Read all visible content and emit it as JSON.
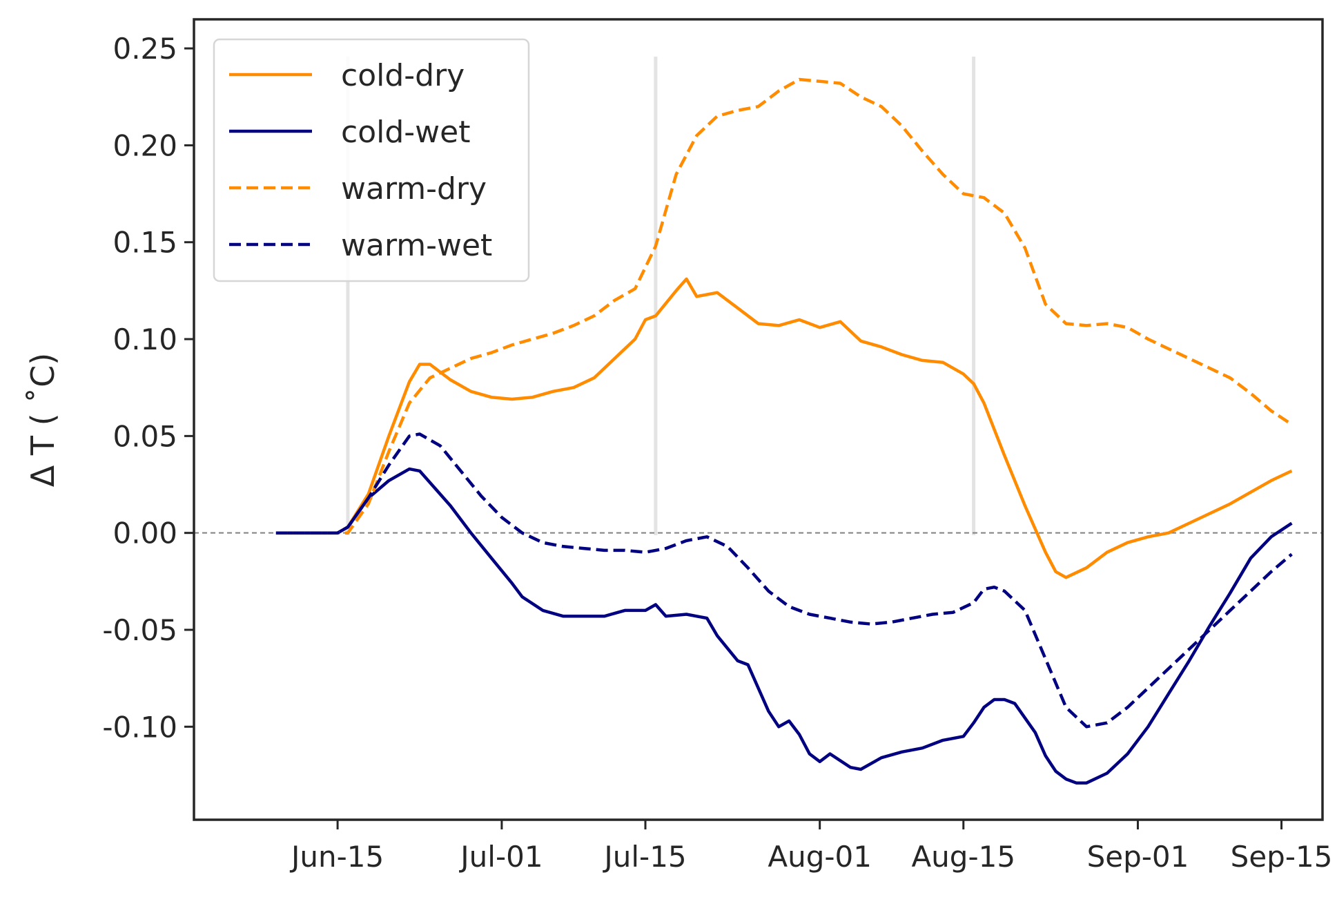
{
  "chart_data": {
    "type": "line",
    "title": "",
    "xlabel": "",
    "ylabel": "Δ T ( ˚C)",
    "ylim": [
      -0.148,
      0.265
    ],
    "xlim": [
      "2023-06-01",
      "2023-09-19"
    ],
    "x_ticks": [
      {
        "date": "2023-06-15",
        "label": "Jun-15"
      },
      {
        "date": "2023-07-01",
        "label": "Jul-01"
      },
      {
        "date": "2023-07-15",
        "label": "Jul-15"
      },
      {
        "date": "2023-08-01",
        "label": "Aug-01"
      },
      {
        "date": "2023-08-15",
        "label": "Aug-15"
      },
      {
        "date": "2023-09-01",
        "label": "Sep-01"
      },
      {
        "date": "2023-09-15",
        "label": "Sep-15"
      }
    ],
    "y_ticks": [
      {
        "value": 0.25,
        "label": "0.25"
      },
      {
        "value": 0.2,
        "label": "0.20"
      },
      {
        "value": 0.15,
        "label": "0.15"
      },
      {
        "value": 0.1,
        "label": "0.10"
      },
      {
        "value": 0.05,
        "label": "0.05"
      },
      {
        "value": 0.0,
        "label": "0.00"
      },
      {
        "value": -0.05,
        "label": "-0.05"
      },
      {
        "value": -0.1,
        "label": "-0.10"
      }
    ],
    "reference_line": {
      "y": 0,
      "style": "dashed",
      "color": "#808080"
    },
    "vertical_markers": [
      "2023-06-16",
      "2023-07-16",
      "2023-08-16"
    ],
    "legend_position": "top-left",
    "grid": false,
    "series": [
      {
        "name": "cold-dry",
        "color": "#ff8c00",
        "style": "solid",
        "points": [
          [
            "2023-06-09",
            0
          ],
          [
            "2023-06-15",
            0
          ],
          [
            "2023-06-16",
            0.003
          ],
          [
            "2023-06-18",
            0.02
          ],
          [
            "2023-06-20",
            0.05
          ],
          [
            "2023-06-22",
            0.078
          ],
          [
            "2023-06-23",
            0.087
          ],
          [
            "2023-06-24",
            0.087
          ],
          [
            "2023-06-26",
            0.079
          ],
          [
            "2023-06-28",
            0.073
          ],
          [
            "2023-06-30",
            0.07
          ],
          [
            "2023-07-02",
            0.069
          ],
          [
            "2023-07-04",
            0.07
          ],
          [
            "2023-07-06",
            0.073
          ],
          [
            "2023-07-08",
            0.075
          ],
          [
            "2023-07-10",
            0.08
          ],
          [
            "2023-07-12",
            0.09
          ],
          [
            "2023-07-14",
            0.1
          ],
          [
            "2023-07-15",
            0.11
          ],
          [
            "2023-07-16",
            0.112
          ],
          [
            "2023-07-18",
            0.125
          ],
          [
            "2023-07-19",
            0.131
          ],
          [
            "2023-07-20",
            0.122
          ],
          [
            "2023-07-22",
            0.124
          ],
          [
            "2023-07-24",
            0.116
          ],
          [
            "2023-07-26",
            0.108
          ],
          [
            "2023-07-28",
            0.107
          ],
          [
            "2023-07-30",
            0.11
          ],
          [
            "2023-08-01",
            0.106
          ],
          [
            "2023-08-03",
            0.109
          ],
          [
            "2023-08-05",
            0.099
          ],
          [
            "2023-08-07",
            0.096
          ],
          [
            "2023-08-09",
            0.092
          ],
          [
            "2023-08-11",
            0.089
          ],
          [
            "2023-08-13",
            0.088
          ],
          [
            "2023-08-15",
            0.082
          ],
          [
            "2023-08-16",
            0.077
          ],
          [
            "2023-08-17",
            0.067
          ],
          [
            "2023-08-19",
            0.04
          ],
          [
            "2023-08-21",
            0.014
          ],
          [
            "2023-08-23",
            -0.01
          ],
          [
            "2023-08-24",
            -0.02
          ],
          [
            "2023-08-25",
            -0.023
          ],
          [
            "2023-08-27",
            -0.018
          ],
          [
            "2023-08-29",
            -0.01
          ],
          [
            "2023-08-31",
            -0.005
          ],
          [
            "2023-09-02",
            -0.002
          ],
          [
            "2023-09-04",
            0
          ],
          [
            "2023-09-06",
            0.005
          ],
          [
            "2023-09-08",
            0.01
          ],
          [
            "2023-09-10",
            0.015
          ],
          [
            "2023-09-12",
            0.021
          ],
          [
            "2023-09-14",
            0.027
          ],
          [
            "2023-09-16",
            0.032
          ]
        ]
      },
      {
        "name": "cold-wet",
        "color": "#000080",
        "style": "solid",
        "points": [
          [
            "2023-06-09",
            0
          ],
          [
            "2023-06-15",
            0
          ],
          [
            "2023-06-16",
            0.003
          ],
          [
            "2023-06-18",
            0.018
          ],
          [
            "2023-06-20",
            0.027
          ],
          [
            "2023-06-22",
            0.033
          ],
          [
            "2023-06-23",
            0.032
          ],
          [
            "2023-06-24",
            0.026
          ],
          [
            "2023-06-26",
            0.014
          ],
          [
            "2023-06-28",
            0
          ],
          [
            "2023-06-30",
            -0.013
          ],
          [
            "2023-07-02",
            -0.026
          ],
          [
            "2023-07-03",
            -0.033
          ],
          [
            "2023-07-05",
            -0.04
          ],
          [
            "2023-07-07",
            -0.043
          ],
          [
            "2023-07-09",
            -0.043
          ],
          [
            "2023-07-11",
            -0.043
          ],
          [
            "2023-07-13",
            -0.04
          ],
          [
            "2023-07-15",
            -0.04
          ],
          [
            "2023-07-16",
            -0.037
          ],
          [
            "2023-07-17",
            -0.043
          ],
          [
            "2023-07-19",
            -0.042
          ],
          [
            "2023-07-21",
            -0.044
          ],
          [
            "2023-07-22",
            -0.053
          ],
          [
            "2023-07-24",
            -0.066
          ],
          [
            "2023-07-25",
            -0.068
          ],
          [
            "2023-07-27",
            -0.092
          ],
          [
            "2023-07-28",
            -0.1
          ],
          [
            "2023-07-29",
            -0.097
          ],
          [
            "2023-07-30",
            -0.104
          ],
          [
            "2023-07-31",
            -0.114
          ],
          [
            "2023-08-01",
            -0.118
          ],
          [
            "2023-08-02",
            -0.114
          ],
          [
            "2023-08-04",
            -0.121
          ],
          [
            "2023-08-05",
            -0.122
          ],
          [
            "2023-08-07",
            -0.116
          ],
          [
            "2023-08-09",
            -0.113
          ],
          [
            "2023-08-11",
            -0.111
          ],
          [
            "2023-08-13",
            -0.107
          ],
          [
            "2023-08-15",
            -0.105
          ],
          [
            "2023-08-16",
            -0.098
          ],
          [
            "2023-08-17",
            -0.09
          ],
          [
            "2023-08-18",
            -0.086
          ],
          [
            "2023-08-19",
            -0.086
          ],
          [
            "2023-08-20",
            -0.088
          ],
          [
            "2023-08-22",
            -0.103
          ],
          [
            "2023-08-23",
            -0.115
          ],
          [
            "2023-08-24",
            -0.123
          ],
          [
            "2023-08-25",
            -0.127
          ],
          [
            "2023-08-26",
            -0.129
          ],
          [
            "2023-08-27",
            -0.129
          ],
          [
            "2023-08-29",
            -0.124
          ],
          [
            "2023-08-31",
            -0.114
          ],
          [
            "2023-09-02",
            -0.1
          ],
          [
            "2023-09-04",
            -0.083
          ],
          [
            "2023-09-06",
            -0.066
          ],
          [
            "2023-09-08",
            -0.048
          ],
          [
            "2023-09-10",
            -0.031
          ],
          [
            "2023-09-12",
            -0.013
          ],
          [
            "2023-09-14",
            -0.002
          ],
          [
            "2023-09-16",
            0.005
          ]
        ]
      },
      {
        "name": "warm-dry",
        "color": "#ff8c00",
        "style": "dashed",
        "points": [
          [
            "2023-06-09",
            0
          ],
          [
            "2023-06-16",
            0
          ],
          [
            "2023-06-18",
            0.015
          ],
          [
            "2023-06-20",
            0.042
          ],
          [
            "2023-06-22",
            0.067
          ],
          [
            "2023-06-24",
            0.08
          ],
          [
            "2023-06-26",
            0.085
          ],
          [
            "2023-06-28",
            0.09
          ],
          [
            "2023-06-30",
            0.093
          ],
          [
            "2023-07-02",
            0.097
          ],
          [
            "2023-07-04",
            0.1
          ],
          [
            "2023-07-06",
            0.103
          ],
          [
            "2023-07-08",
            0.107
          ],
          [
            "2023-07-10",
            0.112
          ],
          [
            "2023-07-12",
            0.12
          ],
          [
            "2023-07-14",
            0.126
          ],
          [
            "2023-07-16",
            0.148
          ],
          [
            "2023-07-18",
            0.185
          ],
          [
            "2023-07-20",
            0.205
          ],
          [
            "2023-07-22",
            0.215
          ],
          [
            "2023-07-24",
            0.218
          ],
          [
            "2023-07-26",
            0.22
          ],
          [
            "2023-07-28",
            0.228
          ],
          [
            "2023-07-30",
            0.234
          ],
          [
            "2023-08-01",
            0.233
          ],
          [
            "2023-08-03",
            0.232
          ],
          [
            "2023-08-05",
            0.225
          ],
          [
            "2023-08-07",
            0.22
          ],
          [
            "2023-08-09",
            0.21
          ],
          [
            "2023-08-11",
            0.197
          ],
          [
            "2023-08-13",
            0.185
          ],
          [
            "2023-08-15",
            0.175
          ],
          [
            "2023-08-17",
            0.173
          ],
          [
            "2023-08-19",
            0.165
          ],
          [
            "2023-08-21",
            0.147
          ],
          [
            "2023-08-23",
            0.118
          ],
          [
            "2023-08-25",
            0.108
          ],
          [
            "2023-08-27",
            0.107
          ],
          [
            "2023-08-29",
            0.108
          ],
          [
            "2023-08-31",
            0.106
          ],
          [
            "2023-09-02",
            0.1
          ],
          [
            "2023-09-04",
            0.095
          ],
          [
            "2023-09-06",
            0.09
          ],
          [
            "2023-09-08",
            0.085
          ],
          [
            "2023-09-10",
            0.08
          ],
          [
            "2023-09-12",
            0.072
          ],
          [
            "2023-09-14",
            0.063
          ],
          [
            "2023-09-16",
            0.056
          ]
        ]
      },
      {
        "name": "warm-wet",
        "color": "#000080",
        "style": "dashed",
        "points": [
          [
            "2023-06-09",
            0
          ],
          [
            "2023-06-15",
            0
          ],
          [
            "2023-06-16",
            0.003
          ],
          [
            "2023-06-18",
            0.018
          ],
          [
            "2023-06-20",
            0.035
          ],
          [
            "2023-06-22",
            0.05
          ],
          [
            "2023-06-23",
            0.051
          ],
          [
            "2023-06-25",
            0.045
          ],
          [
            "2023-06-27",
            0.032
          ],
          [
            "2023-06-29",
            0.019
          ],
          [
            "2023-07-01",
            0.008
          ],
          [
            "2023-07-03",
            0
          ],
          [
            "2023-07-05",
            -0.005
          ],
          [
            "2023-07-07",
            -0.007
          ],
          [
            "2023-07-09",
            -0.008
          ],
          [
            "2023-07-11",
            -0.009
          ],
          [
            "2023-07-13",
            -0.009
          ],
          [
            "2023-07-15",
            -0.01
          ],
          [
            "2023-07-17",
            -0.008
          ],
          [
            "2023-07-19",
            -0.004
          ],
          [
            "2023-07-21",
            -0.002
          ],
          [
            "2023-07-23",
            -0.007
          ],
          [
            "2023-07-25",
            -0.018
          ],
          [
            "2023-07-27",
            -0.03
          ],
          [
            "2023-07-29",
            -0.038
          ],
          [
            "2023-07-31",
            -0.042
          ],
          [
            "2023-08-02",
            -0.044
          ],
          [
            "2023-08-04",
            -0.046
          ],
          [
            "2023-08-06",
            -0.047
          ],
          [
            "2023-08-08",
            -0.046
          ],
          [
            "2023-08-10",
            -0.044
          ],
          [
            "2023-08-12",
            -0.042
          ],
          [
            "2023-08-14",
            -0.041
          ],
          [
            "2023-08-16",
            -0.036
          ],
          [
            "2023-08-17",
            -0.029
          ],
          [
            "2023-08-18",
            -0.028
          ],
          [
            "2023-08-19",
            -0.03
          ],
          [
            "2023-08-21",
            -0.04
          ],
          [
            "2023-08-23",
            -0.065
          ],
          [
            "2023-08-25",
            -0.09
          ],
          [
            "2023-08-27",
            -0.1
          ],
          [
            "2023-08-29",
            -0.098
          ],
          [
            "2023-08-31",
            -0.09
          ],
          [
            "2023-09-02",
            -0.08
          ],
          [
            "2023-09-04",
            -0.07
          ],
          [
            "2023-09-06",
            -0.06
          ],
          [
            "2023-09-08",
            -0.05
          ],
          [
            "2023-09-10",
            -0.04
          ],
          [
            "2023-09-12",
            -0.03
          ],
          [
            "2023-09-14",
            -0.02
          ],
          [
            "2023-09-16",
            -0.011
          ]
        ]
      }
    ]
  }
}
